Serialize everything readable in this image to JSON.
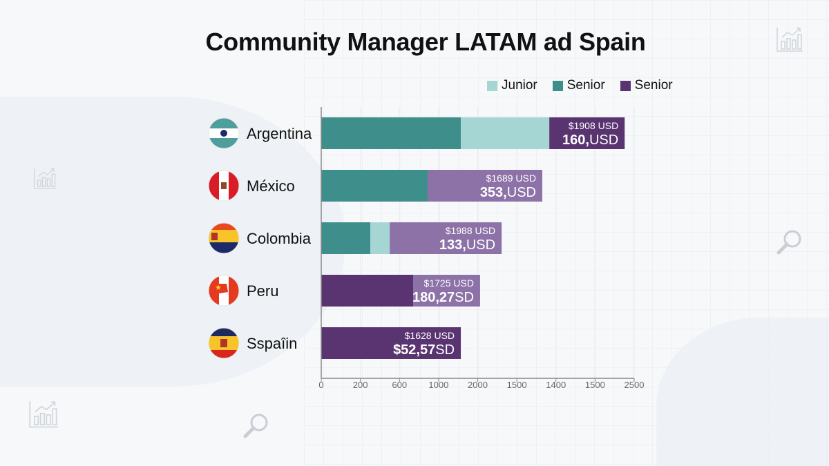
{
  "chart_data": {
    "type": "bar",
    "orientation": "horizontal",
    "stacked": true,
    "title": "Community Manager LATAM ad Spain",
    "xlabel": "",
    "ylabel": "",
    "xlim": [
      0,
      2500
    ],
    "x_tick_labels": [
      "0",
      "200",
      "600",
      "1000",
      "2000",
      "1500",
      "1400",
      "1500",
      "2500"
    ],
    "grid": true,
    "legend_position": "top-right",
    "legend": [
      {
        "label": "Junior",
        "color": "#a6d6d4"
      },
      {
        "label": "Senior",
        "color": "#3e8e8c"
      },
      {
        "label": "Senior",
        "color": "#5a3470"
      }
    ],
    "categories": [
      {
        "name": "Argentina",
        "flag": "argentina-flag-icon",
        "segments": [
          {
            "value": 1115,
            "color": "#3e8e8c"
          },
          {
            "value": 707,
            "color": "#a6d6d4"
          },
          {
            "value": 602,
            "color": "#5a3470"
          }
        ],
        "label_top": "$1908 USD",
        "label_bold": "160,",
        "label_rest": "USD"
      },
      {
        "name": "México",
        "flag": "mexico-flag-icon",
        "segments": [
          {
            "value": 850,
            "color": "#3e8e8c"
          },
          {
            "value": 916,
            "color": "#8d72a8"
          }
        ],
        "label_top": "$1689 USD",
        "label_bold": "353,",
        "label_rest": "USD"
      },
      {
        "name": "Colombia",
        "flag": "colombia-flag-icon",
        "segments": [
          {
            "value": 392,
            "color": "#3e8e8c"
          },
          {
            "value": 155,
            "color": "#a6d6d4"
          },
          {
            "value": 894,
            "color": "#8d72a8"
          }
        ],
        "label_top": "$1988 USD",
        "label_bold": "133,",
        "label_rest": "USD"
      },
      {
        "name": "Peru",
        "flag": "peru-flag-icon",
        "segments": [
          {
            "value": 734,
            "color": "#5a3470"
          },
          {
            "value": 535,
            "color": "#8d72a8"
          }
        ],
        "label_top": "$1725 USD",
        "label_bold": "180,27",
        "label_rest": "SD"
      },
      {
        "name": "Sspaîin",
        "flag": "spain-flag-icon",
        "segments": [
          {
            "value": 1115,
            "color": "#5a3470"
          }
        ],
        "label_top": "$1628 USD",
        "label_bold": "$52,57",
        "label_rest": "SD"
      }
    ]
  }
}
